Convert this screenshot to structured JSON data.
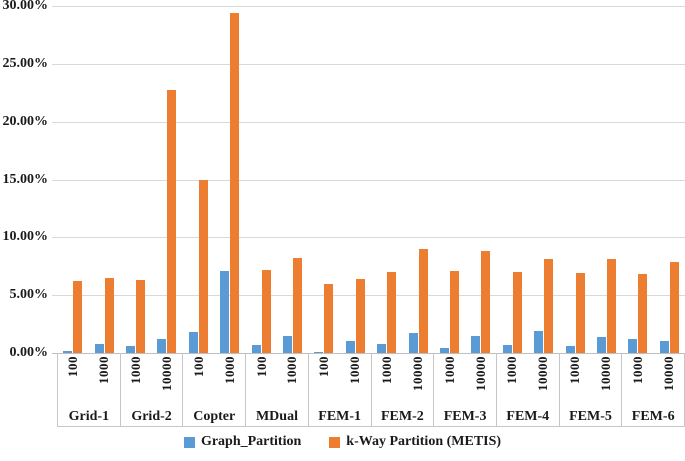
{
  "chart_data": {
    "type": "bar",
    "title": "",
    "xlabel": "",
    "ylabel": "",
    "ylim": [
      0,
      30
    ],
    "grid": true,
    "legend_position": "bottom",
    "value_unit": "percent",
    "yticks": [
      {
        "v": 0,
        "label": "0.00%"
      },
      {
        "v": 5,
        "label": "5.00%"
      },
      {
        "v": 10,
        "label": "10.00%"
      },
      {
        "v": 15,
        "label": "15.00%"
      },
      {
        "v": 20,
        "label": "20.00%"
      },
      {
        "v": 25,
        "label": "25.00%"
      },
      {
        "v": 30,
        "label": "30.00%"
      }
    ],
    "groups": [
      {
        "label": "Grid-1",
        "subs": [
          "100",
          "1000"
        ]
      },
      {
        "label": "Grid-2",
        "subs": [
          "1000",
          "10000"
        ]
      },
      {
        "label": "Copter",
        "subs": [
          "100",
          "1000"
        ]
      },
      {
        "label": "MDual",
        "subs": [
          "100",
          "1000"
        ]
      },
      {
        "label": "FEM-1",
        "subs": [
          "100",
          "1000"
        ]
      },
      {
        "label": "FEM-2",
        "subs": [
          "1000",
          "10000"
        ]
      },
      {
        "label": "FEM-3",
        "subs": [
          "1000",
          "10000"
        ]
      },
      {
        "label": "FEM-4",
        "subs": [
          "1000",
          "10000"
        ]
      },
      {
        "label": "FEM-5",
        "subs": [
          "1000",
          "10000"
        ]
      },
      {
        "label": "FEM-6",
        "subs": [
          "1000",
          "10000"
        ]
      }
    ],
    "series": [
      {
        "name": "Graph_Partition",
        "color": "#5B9BD5",
        "values": [
          [
            0.2,
            0.8
          ],
          [
            0.6,
            1.2
          ],
          [
            1.8,
            7.1
          ],
          [
            0.7,
            1.5
          ],
          [
            0.1,
            1.0
          ],
          [
            0.8,
            1.7
          ],
          [
            0.4,
            1.5
          ],
          [
            0.7,
            1.9
          ],
          [
            0.6,
            1.4
          ],
          [
            1.2,
            1.0
          ]
        ]
      },
      {
        "name": "k-Way Partition (METIS)",
        "color": "#ED7D31",
        "values": [
          [
            6.2,
            6.5
          ],
          [
            6.3,
            22.7
          ],
          [
            15.0,
            29.4
          ],
          [
            7.2,
            8.2
          ],
          [
            6.0,
            6.4
          ],
          [
            7.0,
            9.0
          ],
          [
            7.1,
            8.8
          ],
          [
            7.0,
            8.1
          ],
          [
            6.9,
            8.1
          ],
          [
            6.8,
            7.9
          ]
        ]
      }
    ],
    "colors": {
      "gridline": "#d9d9d9",
      "axis_line": "#bfbfbf",
      "separator": "#c6c6c6",
      "text": "#1a1a1a"
    }
  }
}
